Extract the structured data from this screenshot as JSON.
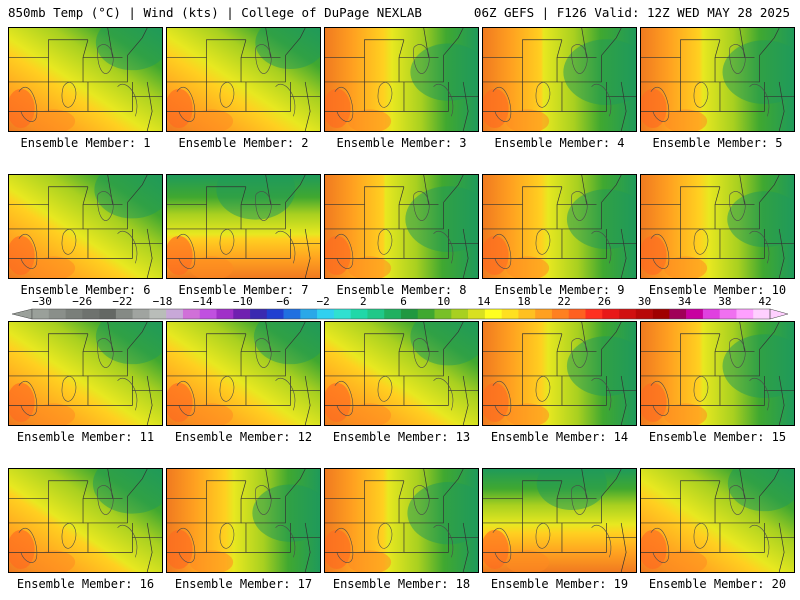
{
  "header": {
    "left": "850mb Temp (°C) | Wind (kts) | College of DuPage NEXLAB",
    "right": "06Z GEFS | F126 Valid: 12Z WED MAY 28 2025"
  },
  "label_prefix": "Ensemble Member: ",
  "members": [
    {
      "id": "1",
      "cool_side": "top-right",
      "cool_extent": 0.4
    },
    {
      "id": "2",
      "cool_side": "top-right",
      "cool_extent": 0.35
    },
    {
      "id": "3",
      "cool_side": "right",
      "cool_extent": 0.45
    },
    {
      "id": "4",
      "cool_side": "right",
      "cool_extent": 0.62
    },
    {
      "id": "5",
      "cool_side": "right",
      "cool_extent": 0.58
    },
    {
      "id": "6",
      "cool_side": "top-right",
      "cool_extent": 0.45
    },
    {
      "id": "7",
      "cool_side": "top",
      "cool_extent": 0.5
    },
    {
      "id": "8",
      "cool_side": "right",
      "cool_extent": 0.62
    },
    {
      "id": "9",
      "cool_side": "right",
      "cool_extent": 0.5
    },
    {
      "id": "10",
      "cool_side": "right",
      "cool_extent": 0.42
    },
    {
      "id": "11",
      "cool_side": "top-right",
      "cool_extent": 0.4
    },
    {
      "id": "12",
      "cool_side": "top-right",
      "cool_extent": 0.4
    },
    {
      "id": "13",
      "cool_side": "top-right",
      "cool_extent": 0.45
    },
    {
      "id": "14",
      "cool_side": "right",
      "cool_extent": 0.5
    },
    {
      "id": "15",
      "cool_side": "right",
      "cool_extent": 0.58
    },
    {
      "id": "16",
      "cool_side": "top-right",
      "cool_extent": 0.5
    },
    {
      "id": "17",
      "cool_side": "right",
      "cool_extent": 0.45
    },
    {
      "id": "18",
      "cool_side": "right",
      "cool_extent": 0.55
    },
    {
      "id": "19",
      "cool_side": "top",
      "cool_extent": 0.35
    },
    {
      "id": "20",
      "cool_side": "top-right",
      "cool_extent": 0.4
    }
  ],
  "colorbar": {
    "ticks": [
      "−30",
      "−26",
      "−22",
      "−18",
      "−14",
      "−10",
      "−6",
      "−2",
      "2",
      "6",
      "10",
      "14",
      "18",
      "22",
      "26",
      "30",
      "34",
      "38",
      "42"
    ],
    "colors": [
      "#9aa09a",
      "#8a8f8a",
      "#7a7f7a",
      "#6e726e",
      "#646864",
      "#858a85",
      "#a0a4a0",
      "#b9bdb9",
      "#c8a8d8",
      "#d070d8",
      "#c050e0",
      "#a030c8",
      "#7020b0",
      "#3a2ab0",
      "#2040d0",
      "#2070e0",
      "#2aa8e8",
      "#30d0f0",
      "#30e0d0",
      "#20d8a8",
      "#20c888",
      "#20b060",
      "#209840",
      "#40a830",
      "#78c028",
      "#a8d020",
      "#d8e020",
      "#ffff20",
      "#ffe020",
      "#ffc020",
      "#ffa020",
      "#ff8020",
      "#ff6020",
      "#ff3020",
      "#e81818",
      "#d01010",
      "#b80808",
      "#a00000",
      "#a00058",
      "#c800a0",
      "#e040e0",
      "#f070f0",
      "#ffa0ff",
      "#ffd0ff"
    ]
  }
}
